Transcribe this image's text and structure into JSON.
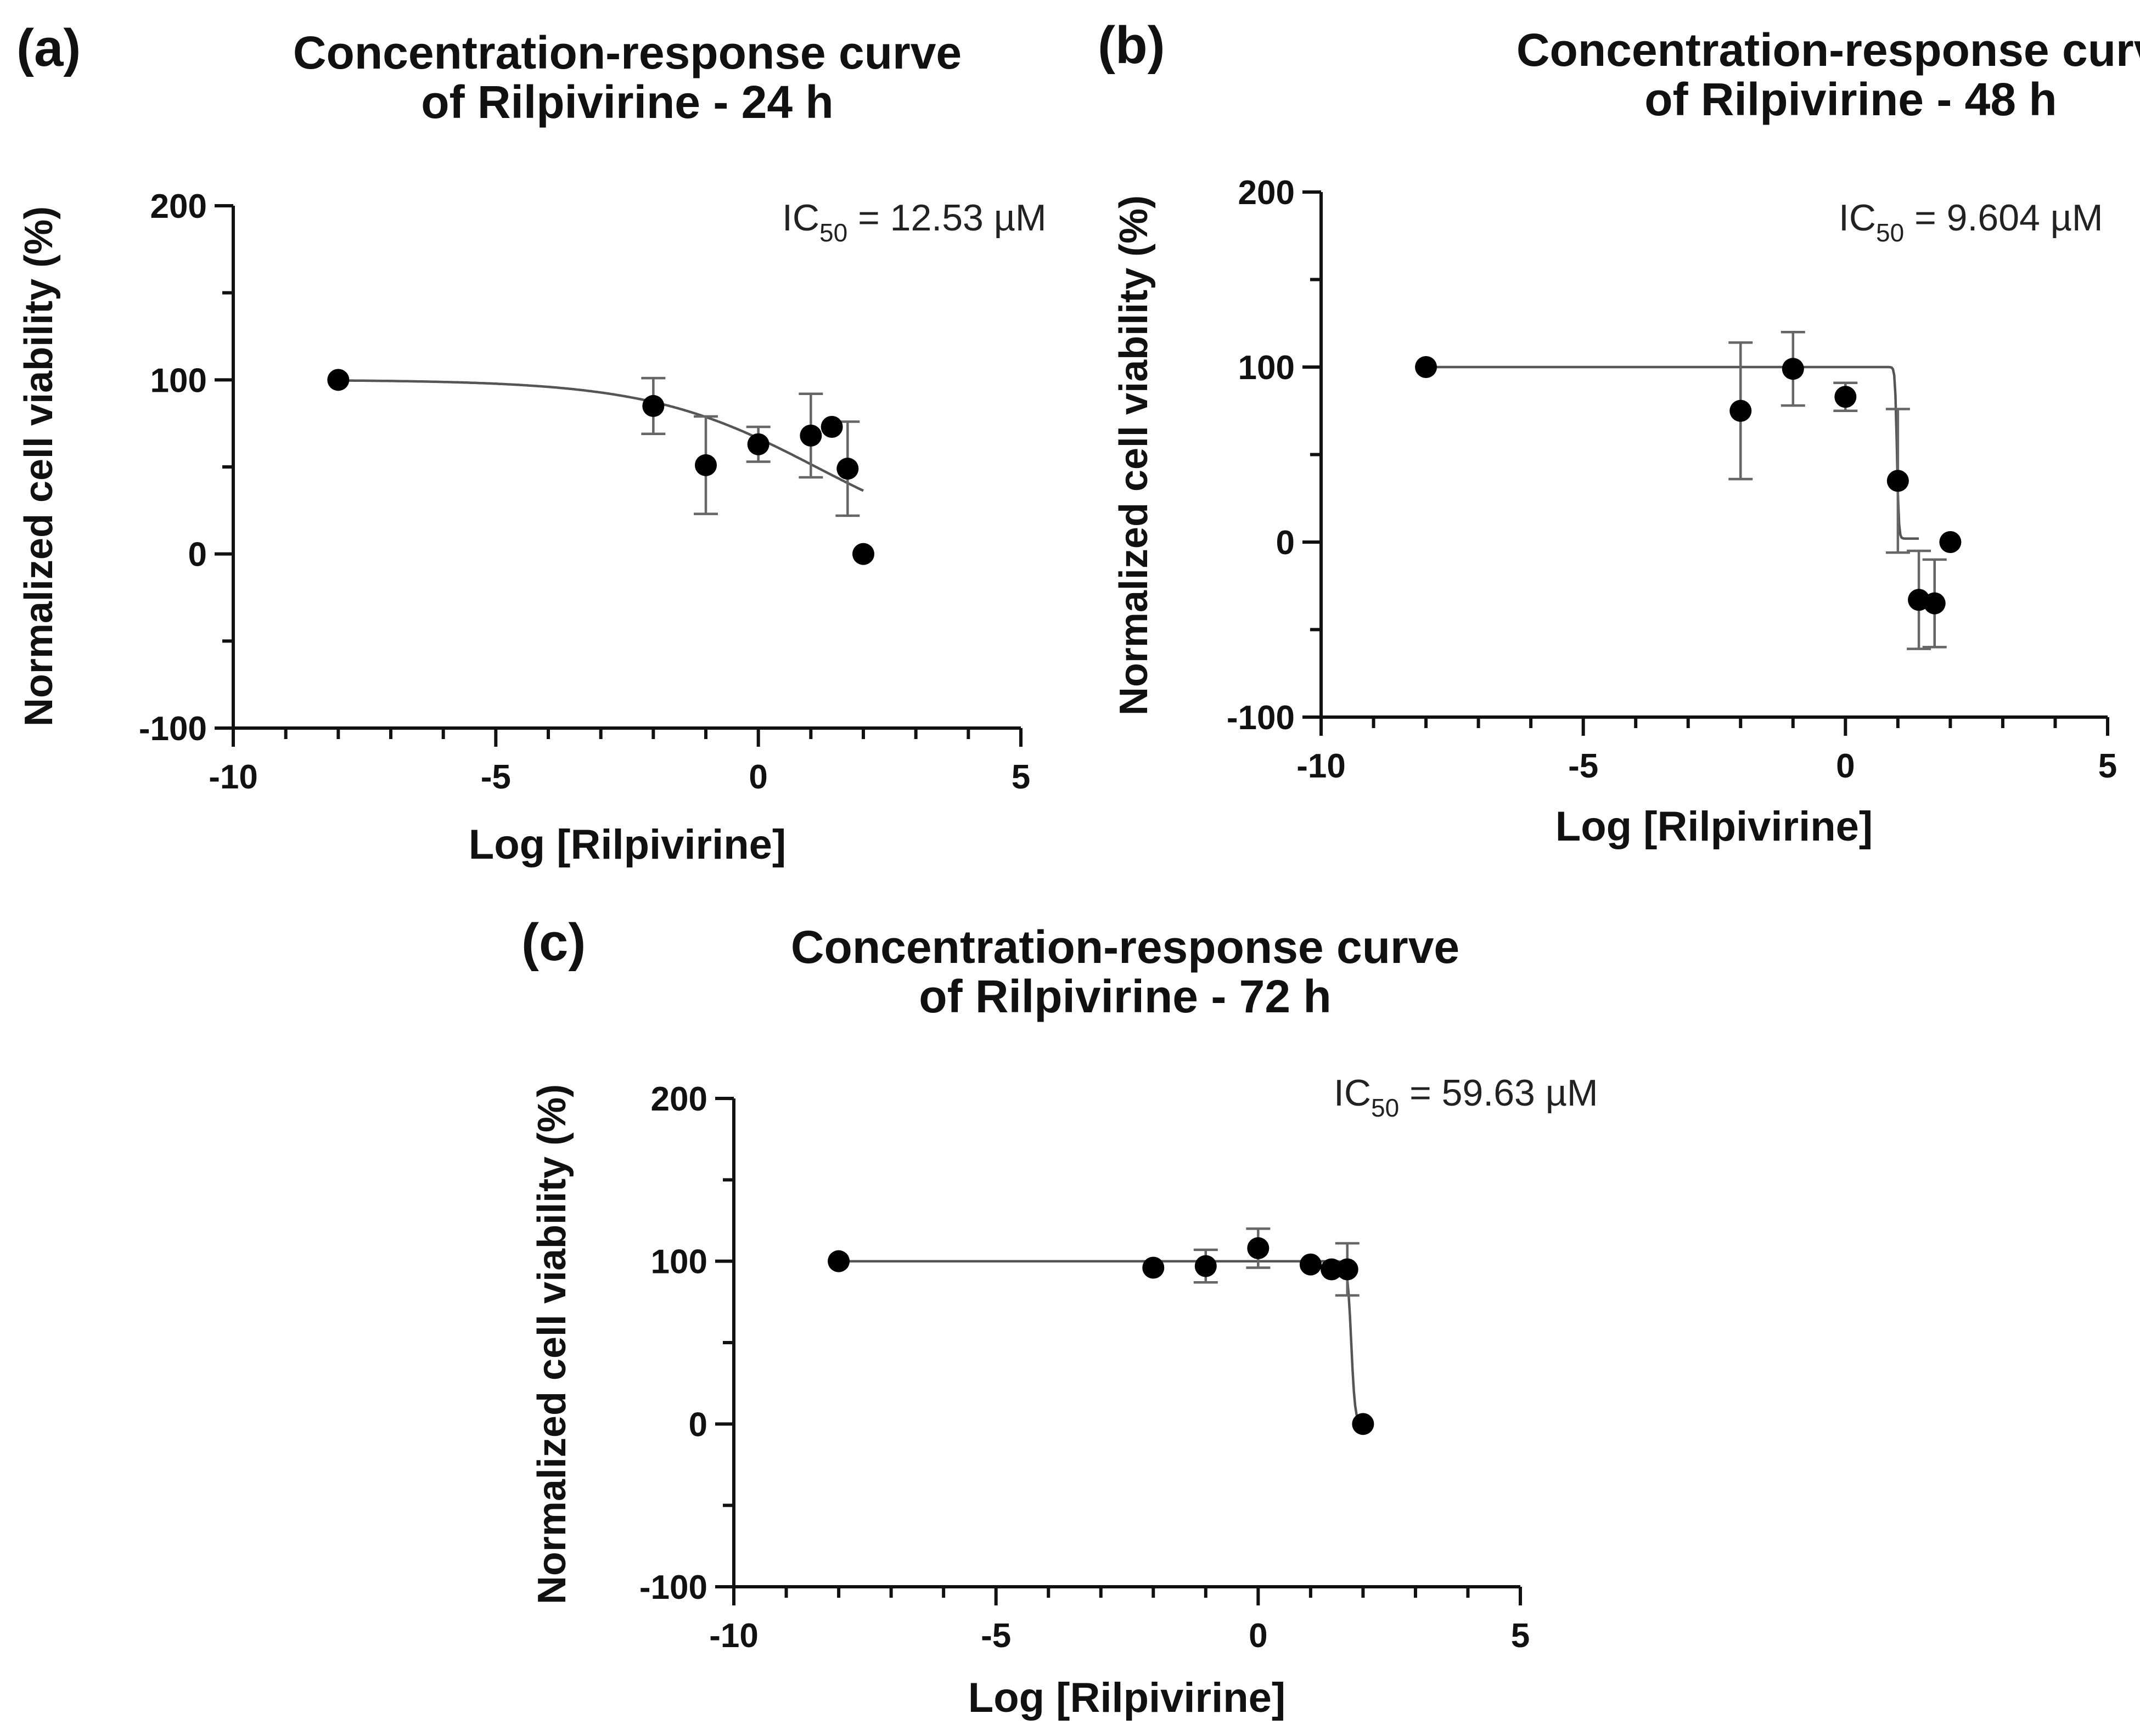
{
  "chart_data": [
    {
      "type": "scatter",
      "panel_label": "(a)",
      "title_lines": [
        "Concentration-response curve",
        "of Rilpivirine - 24 h"
      ],
      "xlabel": "Log [Rilpivirine]",
      "ylabel": "Normalized cell viability (%)",
      "xlim": [
        -10,
        5
      ],
      "ylim": [
        -100,
        200
      ],
      "xticks": [
        -10,
        -5,
        0,
        5
      ],
      "yticks": [
        -100,
        0,
        100,
        200
      ],
      "annotation": {
        "prefix": "IC",
        "sub": "50",
        "suffix": " = 12.53 µM"
      },
      "points": [
        {
          "x": -8,
          "y": 100,
          "err": 0
        },
        {
          "x": -2,
          "y": 85,
          "err": 16
        },
        {
          "x": -1,
          "y": 51,
          "err": 28
        },
        {
          "x": 0,
          "y": 63,
          "err": 10
        },
        {
          "x": 1,
          "y": 68,
          "err": 24
        },
        {
          "x": 1.4,
          "y": 73,
          "err": 0
        },
        {
          "x": 1.7,
          "y": 49,
          "err": 27
        },
        {
          "x": 2,
          "y": 0,
          "err": 0
        }
      ],
      "fit": {
        "top": 100,
        "bottom": 0,
        "logIC50": 1.098,
        "hill": 0.27,
        "xrange": [
          -8,
          2
        ]
      }
    },
    {
      "type": "scatter",
      "panel_label": "(b)",
      "title_lines": [
        "Concentration-response curve",
        "of Rilpivirine - 48 h"
      ],
      "xlabel": "Log [Rilpivirine]",
      "ylabel": "Normalized cell viability (%)",
      "xlim": [
        -10,
        5
      ],
      "ylim": [
        -100,
        200
      ],
      "xticks": [
        -10,
        -5,
        0,
        5
      ],
      "yticks": [
        -100,
        0,
        100,
        200
      ],
      "annotation": {
        "prefix": "IC",
        "sub": "50",
        "suffix": " = 9.604 µM"
      },
      "points": [
        {
          "x": -8,
          "y": 100,
          "err": 0
        },
        {
          "x": -2,
          "y": 75,
          "err": 39
        },
        {
          "x": -1,
          "y": 99,
          "err": 21
        },
        {
          "x": 0,
          "y": 83,
          "err": 8
        },
        {
          "x": 1,
          "y": 35,
          "err": 41
        },
        {
          "x": 1.4,
          "y": -33,
          "err": 28
        },
        {
          "x": 1.7,
          "y": -35,
          "err": 25
        },
        {
          "x": 2,
          "y": 0,
          "err": 0
        }
      ],
      "fit": {
        "top": 100,
        "bottom": 2,
        "logIC50": 0.982,
        "hill": 25,
        "xrange": [
          -8,
          1.4
        ]
      }
    },
    {
      "type": "scatter",
      "panel_label": "(c)",
      "title_lines": [
        "Concentration-response curve",
        "of Rilpivirine - 72 h"
      ],
      "xlabel": "Log [Rilpivirine]",
      "ylabel": "Normalized cell viability (%)",
      "xlim": [
        -10,
        5
      ],
      "ylim": [
        -100,
        200
      ],
      "xticks": [
        -10,
        -5,
        0,
        5
      ],
      "yticks": [
        -100,
        0,
        100,
        200
      ],
      "annotation": {
        "prefix": "IC",
        "sub": "50",
        "suffix": " = 59.63 µM"
      },
      "points": [
        {
          "x": -8,
          "y": 100,
          "err": 0
        },
        {
          "x": -2,
          "y": 96,
          "err": 0
        },
        {
          "x": -1,
          "y": 97,
          "err": 10
        },
        {
          "x": 0,
          "y": 108,
          "err": 12
        },
        {
          "x": 1,
          "y": 98,
          "err": 0
        },
        {
          "x": 1.4,
          "y": 95,
          "err": 0
        },
        {
          "x": 1.7,
          "y": 95,
          "err": 16
        },
        {
          "x": 2,
          "y": 0,
          "err": 0
        }
      ],
      "fit": {
        "top": 100,
        "bottom": 0,
        "logIC50": 1.775,
        "hill": 12,
        "xrange": [
          -8,
          2
        ]
      }
    }
  ]
}
